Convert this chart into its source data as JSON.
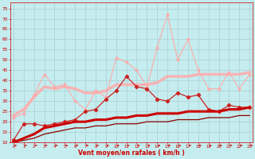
{
  "title": "",
  "xlabel": "Vent moyen/en rafales ( km/h )",
  "background_color": "#c5ecee",
  "grid_color": "#b0d8da",
  "x": [
    0,
    1,
    2,
    3,
    4,
    5,
    6,
    7,
    8,
    9,
    10,
    11,
    12,
    13,
    14,
    15,
    16,
    17,
    18,
    19,
    20,
    21,
    22,
    23
  ],
  "line_top_jagged": [
    22,
    24,
    33,
    43,
    37,
    38,
    30,
    26,
    35,
    32,
    51,
    49,
    45,
    37,
    56,
    72,
    50,
    60,
    45,
    36,
    36,
    44,
    36,
    43
  ],
  "line_mid_smooth": [
    23,
    26,
    32,
    37,
    36,
    37,
    36,
    34,
    34,
    35,
    38,
    38,
    38,
    38,
    39,
    42,
    42,
    42,
    43,
    43,
    43,
    43,
    43,
    44
  ],
  "line_mid_jagged": [
    11,
    19,
    19,
    18,
    19,
    20,
    21,
    25,
    26,
    31,
    35,
    42,
    37,
    36,
    31,
    30,
    34,
    32,
    33,
    26,
    25,
    28,
    27,
    27
  ],
  "line_thick_smooth": [
    10,
    12,
    14,
    17,
    18,
    19,
    20,
    20,
    21,
    21,
    22,
    22,
    23,
    23,
    24,
    24,
    24,
    25,
    25,
    25,
    25,
    26,
    26,
    27
  ],
  "line_bottom": [
    10,
    11,
    12,
    14,
    15,
    16,
    17,
    17,
    18,
    18,
    19,
    19,
    19,
    20,
    20,
    20,
    21,
    21,
    21,
    22,
    22,
    22,
    23,
    23
  ],
  "color_top_jagged": "#ffaaaa",
  "color_mid_smooth": "#ffaaaa",
  "color_mid_jagged": "#cc2222",
  "color_thick_smooth": "#cc0000",
  "color_bottom": "#880000",
  "arrow_color": "#cc0000",
  "xlabel_color": "#cc0000",
  "tick_color": "#cc0000",
  "ylim": [
    10,
    78
  ],
  "yticks": [
    10,
    15,
    20,
    25,
    30,
    35,
    40,
    45,
    50,
    55,
    60,
    65,
    70,
    75
  ],
  "xlim": [
    -0.3,
    23.3
  ]
}
